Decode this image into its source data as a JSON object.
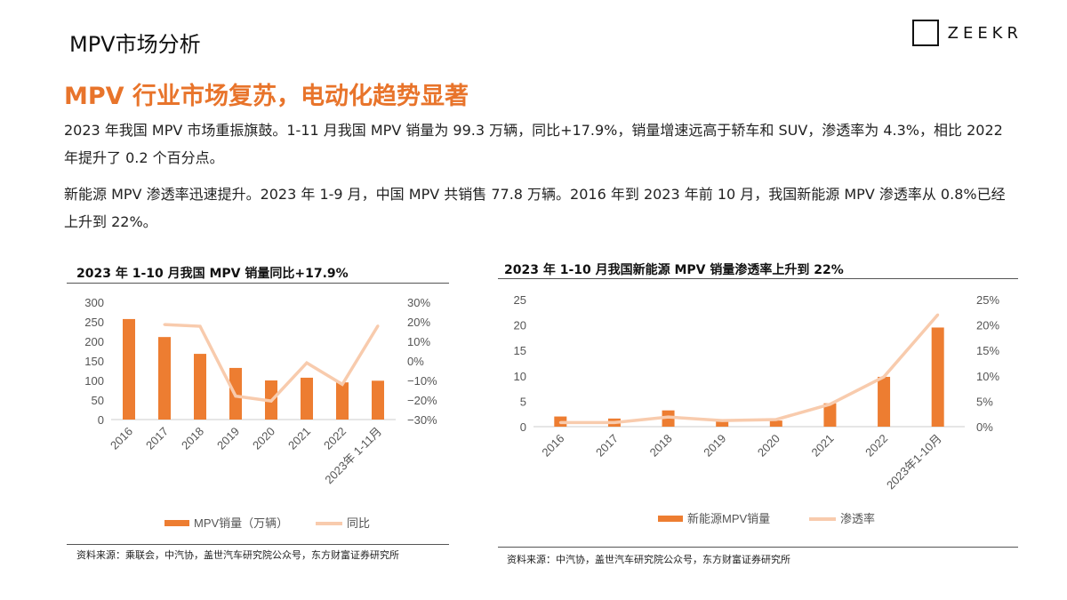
{
  "page": {
    "title": "MPV市场分析",
    "logo_text": "ZEEKR",
    "headline": "MPV 行业市场复苏，电动化趋势显著",
    "paragraphs": [
      "2023 年我国 MPV 市场重振旗鼓。1-11 月我国 MPV 销量为 99.3 万辆，同比+17.9%，销量增速远高于轿车和 SUV，渗透率为 4.3%，相比 2022 年提升了 0.2 个百分点。",
      "新能源 MPV 渗透率迅速提升。2023 年 1-9 月，中国 MPV 共销售 77.8 万辆。2016 年到 2023 年前 10 月，我国新能源 MPV 渗透率从 0.8%已经上升到 22%。"
    ]
  },
  "chart_data": [
    {
      "type": "bar+line",
      "title": "2023 年 1-10 月我国 MPV 销量同比+17.9%",
      "categories": [
        "2016",
        "2017",
        "2018",
        "2019",
        "2020",
        "2021",
        "2022",
        "2023年 1-11月"
      ],
      "series": [
        {
          "name": "MPV销量（万辆）",
          "type": "bar",
          "axis": "left",
          "values": [
            257,
            211,
            168,
            132,
            100,
            107,
            95,
            99.3
          ]
        },
        {
          "name": "同比",
          "type": "line",
          "axis": "right",
          "values": [
            null,
            18.6,
            17.7,
            -18,
            -20.5,
            -1,
            -12,
            17.9
          ]
        }
      ],
      "ylim_left": [
        0,
        300
      ],
      "yticks_left": [
        "0",
        "50",
        "100",
        "150",
        "200",
        "250",
        "300"
      ],
      "ylim_right": [
        -30,
        30
      ],
      "yticks_right": [
        "−30%",
        "−20%",
        "−10%",
        "0%",
        "10%",
        "20%",
        "30%"
      ],
      "legend": "bottom",
      "source": "资料来源：乘联会，中汽协，盖世汽车研究院公众号，东方财富证券研究所"
    },
    {
      "type": "bar+line",
      "title": "2023 年 1-10 月我国新能源 MPV 销量渗透率上升到 22%",
      "categories": [
        "2016",
        "2017",
        "2018",
        "2019",
        "2020",
        "2021",
        "2022",
        "2023年1-10月"
      ],
      "series": [
        {
          "name": "新能源MPV销量",
          "type": "bar",
          "axis": "left",
          "values": [
            2.0,
            1.6,
            3.2,
            1.1,
            1.2,
            4.6,
            9.8,
            19.5
          ]
        },
        {
          "name": "渗透率",
          "type": "line",
          "axis": "right",
          "values": [
            0.8,
            0.8,
            1.9,
            1.2,
            1.4,
            4.4,
            9.8,
            22
          ]
        }
      ],
      "ylim_left": [
        0,
        25
      ],
      "yticks_left": [
        "0",
        "5",
        "10",
        "15",
        "20",
        "25"
      ],
      "ylim_right": [
        0,
        25
      ],
      "yticks_right": [
        "0%",
        "5%",
        "10%",
        "15%",
        "20%",
        "25%"
      ],
      "legend": "bottom",
      "source": "资料来源：中汽协，盖世汽车研究院公众号，东方财富证券研究所"
    }
  ],
  "colors": {
    "bar": "#ed7d31",
    "line": "#f8cbad",
    "accent": "#e8742b"
  }
}
